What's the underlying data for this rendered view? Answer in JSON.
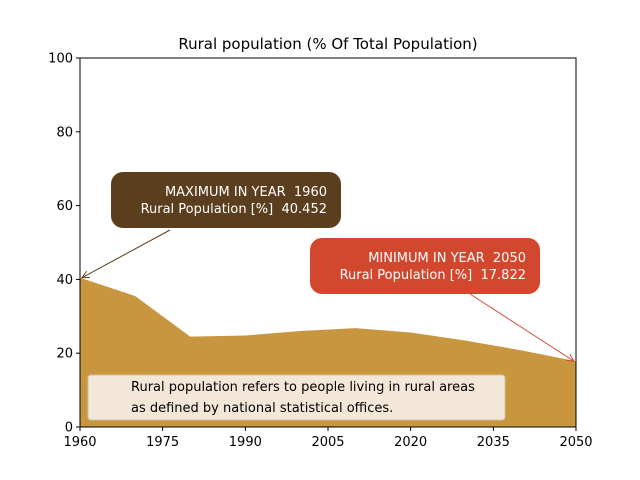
{
  "chart_data": {
    "type": "area",
    "title": "Rural population (% Of Total Population)",
    "xlabel": "",
    "ylabel": "",
    "xlim": [
      1960,
      2050
    ],
    "ylim": [
      0,
      100
    ],
    "x_ticks": [
      1960,
      1975,
      1990,
      2005,
      2020,
      2035,
      2050
    ],
    "y_ticks": [
      0,
      20,
      40,
      60,
      80,
      100
    ],
    "grid": false,
    "series": [
      {
        "x": [
          1960,
          1970,
          1980,
          1990,
          2000,
          2010,
          2020,
          2030,
          2040,
          2050
        ],
        "values": [
          40.452,
          35.5,
          24.5,
          24.8,
          26.0,
          26.8,
          25.6,
          23.4,
          20.8,
          17.822
        ]
      }
    ],
    "annotations": {
      "max": {
        "line1": "MAXIMUM IN YEAR  1960",
        "line2": "Rural Population [%]  40.452",
        "x": 1960,
        "y": 40.452
      },
      "min": {
        "line1": "MINIMUM IN YEAR  2050",
        "line2": "Rural Population [%]  17.822",
        "x": 2050,
        "y": 17.822
      }
    },
    "note": {
      "line1": "Rural population refers to people living in rural areas",
      "line2": "as defined by national statistical offices."
    },
    "colors": {
      "area": "#c8963e",
      "max_box": "#5a3e1e",
      "min_box": "#d4472f",
      "note_box": "#f3e8d8"
    }
  }
}
